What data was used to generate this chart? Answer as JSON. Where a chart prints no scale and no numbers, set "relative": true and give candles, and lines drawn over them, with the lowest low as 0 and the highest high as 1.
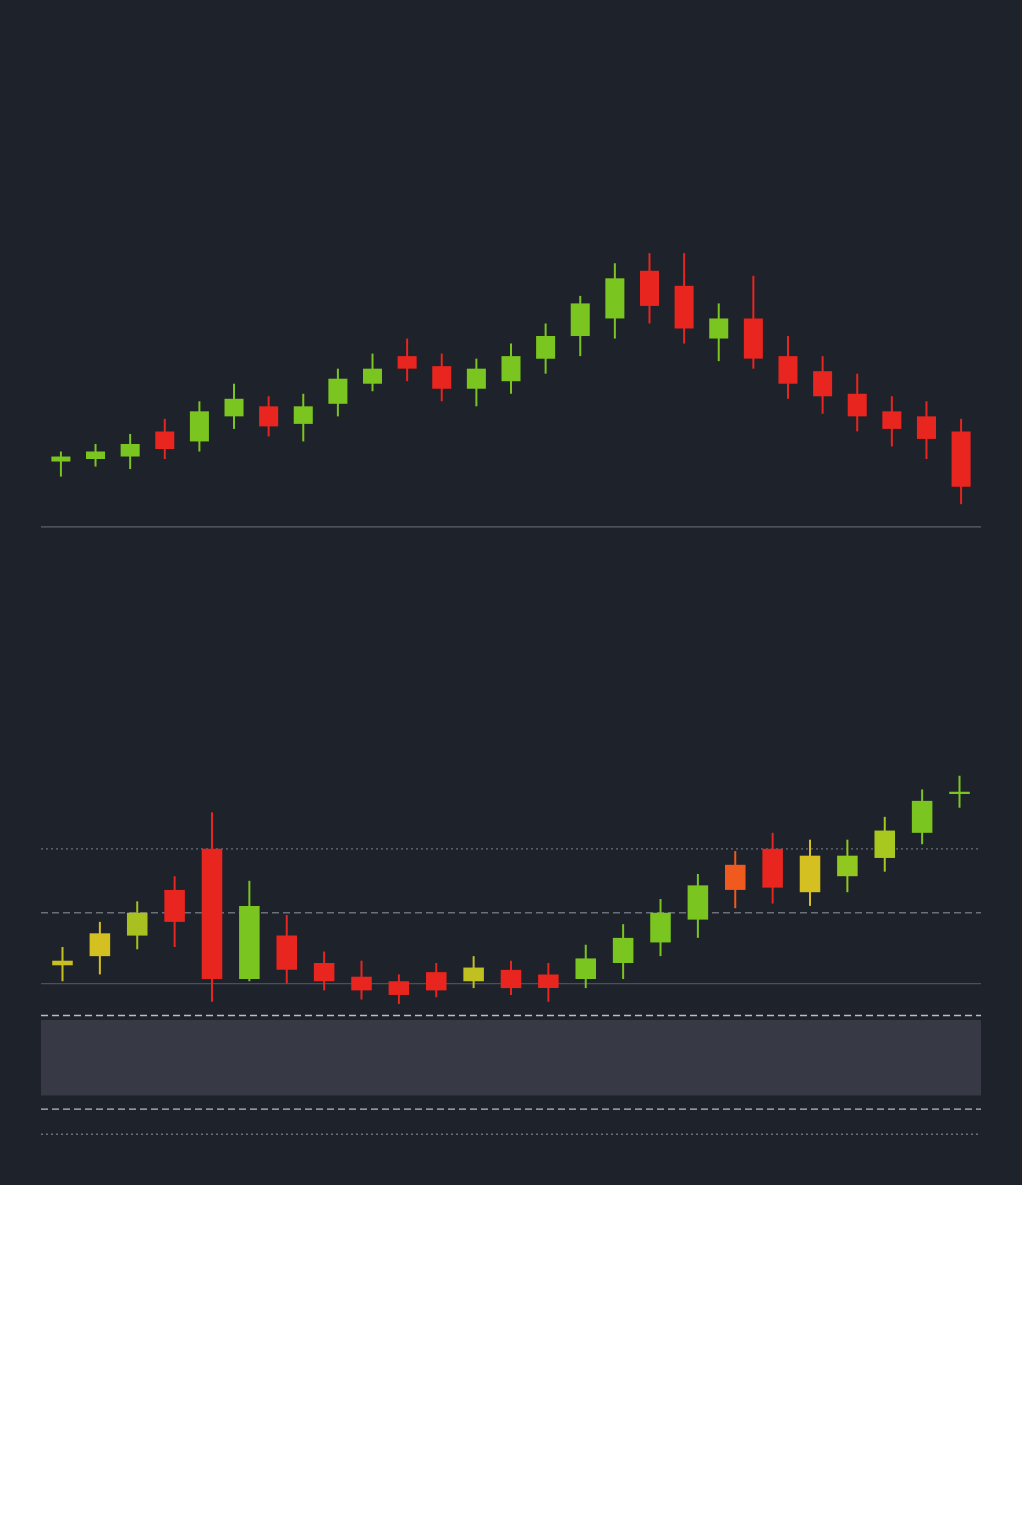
{
  "chart_data": [
    {
      "type": "candlestick",
      "relative": true,
      "categories": [
        null,
        null,
        null,
        null,
        null,
        null,
        null,
        null,
        null,
        null,
        null,
        null,
        null,
        null,
        null,
        null,
        null,
        null,
        null,
        null,
        null,
        null,
        null,
        null,
        null,
        null,
        null
      ],
      "ohlc": [
        [
          0.17,
          0.21,
          0.11,
          0.19
        ],
        [
          0.18,
          0.24,
          0.15,
          0.21
        ],
        [
          0.19,
          0.28,
          0.14,
          0.24
        ],
        [
          0.29,
          0.34,
          0.18,
          0.22
        ],
        [
          0.25,
          0.41,
          0.21,
          0.37
        ],
        [
          0.35,
          0.48,
          0.3,
          0.42
        ],
        [
          0.39,
          0.43,
          0.27,
          0.31
        ],
        [
          0.32,
          0.44,
          0.25,
          0.39
        ],
        [
          0.4,
          0.54,
          0.35,
          0.5
        ],
        [
          0.48,
          0.6,
          0.45,
          0.54
        ],
        [
          0.59,
          0.66,
          0.49,
          0.54
        ],
        [
          0.55,
          0.6,
          0.41,
          0.46
        ],
        [
          0.46,
          0.58,
          0.39,
          0.54
        ],
        [
          0.49,
          0.64,
          0.44,
          0.59
        ],
        [
          0.58,
          0.72,
          0.52,
          0.67
        ],
        [
          0.67,
          0.83,
          0.59,
          0.8
        ],
        [
          0.74,
          0.96,
          0.66,
          0.9
        ],
        [
          0.93,
          1.0,
          0.72,
          0.79
        ],
        [
          0.87,
          1.0,
          0.64,
          0.7
        ],
        [
          0.66,
          0.8,
          0.57,
          0.74
        ],
        [
          0.74,
          0.91,
          0.54,
          0.58
        ],
        [
          0.59,
          0.67,
          0.42,
          0.48
        ],
        [
          0.53,
          0.59,
          0.36,
          0.43
        ],
        [
          0.44,
          0.52,
          0.29,
          0.35
        ],
        [
          0.37,
          0.43,
          0.23,
          0.3
        ],
        [
          0.35,
          0.41,
          0.18,
          0.26
        ],
        [
          0.29,
          0.34,
          0.0,
          0.07
        ]
      ],
      "colors": [
        "#7ac520",
        "#7ac520",
        "#7ac520",
        "#e8251f",
        "#7ac520",
        "#7ac520",
        "#e8251f",
        "#7ac520",
        "#7ac520",
        "#7ac520",
        "#e8251f",
        "#e8251f",
        "#7ac520",
        "#7ac520",
        "#7ac520",
        "#7ac520",
        "#7ac520",
        "#e8251f",
        "#e8251f",
        "#7ac520",
        "#e8251f",
        "#e8251f",
        "#e8251f",
        "#e8251f",
        "#e8251f",
        "#e8251f",
        "#e8251f"
      ],
      "ref_lines": [
        {
          "axis": "y",
          "value": -0.09,
          "color": "#5d626c",
          "line_style": "solid"
        }
      ]
    },
    {
      "type": "candlestick",
      "relative": true,
      "categories": [
        null,
        null,
        null,
        null,
        null,
        null,
        null,
        null,
        null,
        null,
        null,
        null,
        null,
        null,
        null,
        null,
        null,
        null,
        null,
        null,
        null,
        null,
        null,
        null,
        null
      ],
      "ohlc": [
        [
          0.17,
          0.25,
          0.1,
          0.19
        ],
        [
          0.21,
          0.36,
          0.13,
          0.31
        ],
        [
          0.3,
          0.45,
          0.24,
          0.4
        ],
        [
          0.5,
          0.56,
          0.25,
          0.36
        ],
        [
          0.68,
          0.84,
          0.01,
          0.11
        ],
        [
          0.11,
          0.54,
          0.1,
          0.43
        ],
        [
          0.3,
          0.39,
          0.09,
          0.15
        ],
        [
          0.18,
          0.23,
          0.06,
          0.1
        ],
        [
          0.12,
          0.19,
          0.02,
          0.06
        ],
        [
          0.1,
          0.13,
          0.0,
          0.04
        ],
        [
          0.14,
          0.18,
          0.03,
          0.06
        ],
        [
          0.1,
          0.21,
          0.07,
          0.16
        ],
        [
          0.15,
          0.19,
          0.04,
          0.07
        ],
        [
          0.13,
          0.18,
          0.01,
          0.07
        ],
        [
          0.11,
          0.26,
          0.07,
          0.2
        ],
        [
          0.18,
          0.35,
          0.11,
          0.29
        ],
        [
          0.27,
          0.46,
          0.21,
          0.4
        ],
        [
          0.37,
          0.57,
          0.29,
          0.52
        ],
        [
          0.5,
          0.67,
          0.42,
          0.61
        ],
        [
          0.68,
          0.75,
          0.44,
          0.51
        ],
        [
          0.49,
          0.72,
          0.43,
          0.65
        ],
        [
          0.56,
          0.72,
          0.49,
          0.65
        ],
        [
          0.64,
          0.82,
          0.58,
          0.76
        ],
        [
          0.75,
          0.94,
          0.7,
          0.89
        ],
        [
          0.92,
          1.0,
          0.86,
          0.93
        ]
      ],
      "colors": [
        "#c8c020",
        "#d4c020",
        "#a8c020",
        "#e8251f",
        "#e8251f",
        "#7ac520",
        "#e8251f",
        "#e8251f",
        "#e8251f",
        "#e8251f",
        "#e8251f",
        "#c0c020",
        "#e8251f",
        "#e8251f",
        "#7ac520",
        "#7ac520",
        "#7ac520",
        "#7ac520",
        "#f05a1e",
        "#e8251f",
        "#d4c020",
        "#90c820",
        "#a8c820",
        "#7ac520",
        "#7ac520"
      ],
      "ref_lines": [
        {
          "axis": "y",
          "value": 0.68,
          "color": "#6a6f79",
          "line_style": "dotted"
        },
        {
          "axis": "y",
          "value": 0.4,
          "color": "#6a6f79",
          "line_style": "dashed"
        },
        {
          "axis": "y",
          "value": 0.09,
          "color": "#4a4f59",
          "line_style": "solid"
        },
        {
          "axis": "y",
          "value": -0.05,
          "color": "#b8bcc4",
          "line_style": "dashed"
        },
        {
          "axis": "y",
          "value": -0.46,
          "color": "#b8bcc4",
          "line_style": "dashed"
        },
        {
          "axis": "y",
          "value": -0.57,
          "color": "#6a6f79",
          "line_style": "dotted"
        }
      ],
      "bands": [
        {
          "axis": "y",
          "from": -0.4,
          "to": -0.07,
          "color": "#3a3d47"
        }
      ]
    }
  ]
}
